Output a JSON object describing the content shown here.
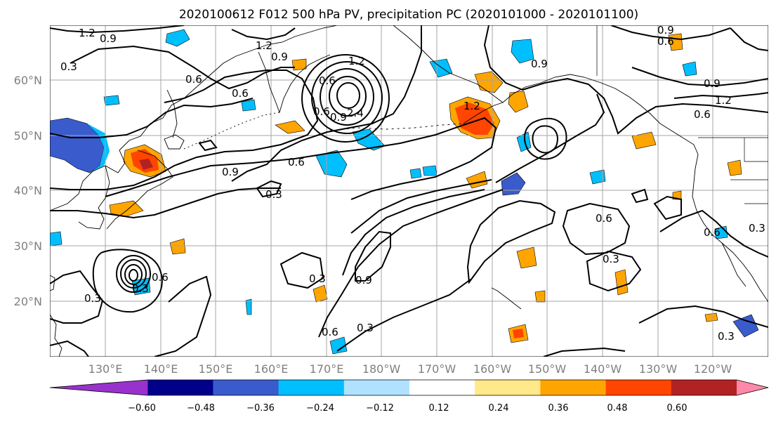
{
  "title": "2020100612 F012 500 hPa PV, precipitation PC (2020101000 - 2020101100)",
  "lat_labels": [
    "60°N",
    "50°N",
    "40°N",
    "30°N",
    "20°N"
  ],
  "lon_labels": [
    "130°E",
    "140°E",
    "150°E",
    "160°E",
    "170°E",
    "180°W",
    "170°W",
    "160°W",
    "150°W",
    "140°W",
    "130°W",
    "120°W"
  ],
  "colorbar": {
    "colors": [
      "#9932cc",
      "#00008b",
      "#3a5bcc",
      "#00bfff",
      "#b0e2ff",
      "#ffffff",
      "#ffe98a",
      "#ffa500",
      "#ff4500",
      "#b22222",
      "#ff88aa"
    ],
    "tick_labels": [
      "−0.60",
      "−0.48",
      "−0.36",
      "−0.24",
      "−0.12",
      "0.12",
      "0.24",
      "0.36",
      "0.48",
      "0.60"
    ]
  },
  "contour_labels": [
    "1.2",
    "0.9",
    "0.3",
    "0.6",
    "1.2",
    "0.9",
    "0.6",
    "1.2",
    "0.6",
    "0.6",
    "0.9",
    "2.4",
    "0.9",
    "0.6",
    "0.3",
    "0.9",
    "1.2",
    "0.9",
    "1.2",
    "0.9",
    "0.6",
    "0.6",
    "0.6",
    "0.3",
    "0.6",
    "0.3",
    "0.9",
    "0.3",
    "0.6",
    "0.3",
    "0.3",
    "0.6",
    "0.3",
    "0.3"
  ]
}
